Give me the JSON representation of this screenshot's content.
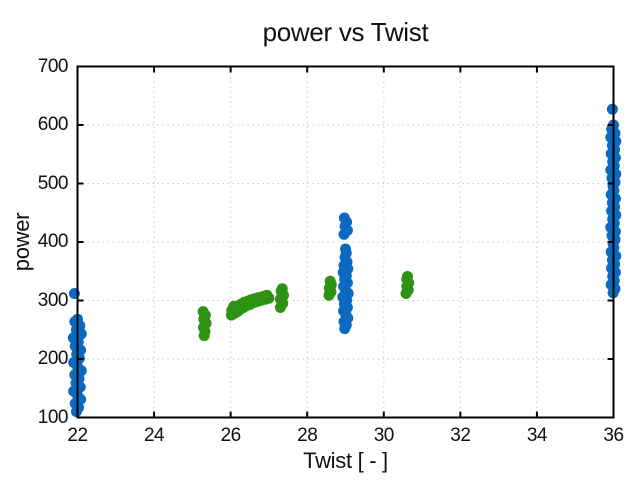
{
  "chart_data": {
    "type": "scatter",
    "title": "power vs Twist",
    "xlabel": "Twist [ - ]",
    "ylabel": "power",
    "xlim": [
      22,
      36
    ],
    "ylim": [
      100,
      700
    ],
    "x_ticks": [
      22,
      24,
      26,
      28,
      30,
      32,
      34,
      36
    ],
    "y_ticks": [
      100,
      200,
      300,
      400,
      500,
      600,
      700
    ],
    "grid": "dotted",
    "legend": "none",
    "marker_diameter_px": 11,
    "style": {
      "background": "#ffffff",
      "axis_color": "#000000",
      "grid_color": "#c8c8c8",
      "text_color": "#111111",
      "blue": "#0d69c0",
      "green": "#2e9314"
    },
    "series": [
      {
        "name": "series-blue",
        "color": "#0d69c0",
        "points": [
          [
            21.92,
            312
          ],
          [
            22.0,
            268
          ],
          [
            21.93,
            264
          ],
          [
            22.06,
            257
          ],
          [
            21.97,
            250
          ],
          [
            22.1,
            243
          ],
          [
            21.89,
            236
          ],
          [
            22.02,
            229
          ],
          [
            21.94,
            222
          ],
          [
            22.08,
            215
          ],
          [
            21.98,
            208
          ],
          [
            22.05,
            201
          ],
          [
            21.9,
            194
          ],
          [
            22.0,
            187
          ],
          [
            22.1,
            180
          ],
          [
            21.93,
            173
          ],
          [
            22.04,
            166
          ],
          [
            21.96,
            159
          ],
          [
            22.07,
            152
          ],
          [
            21.9,
            145
          ],
          [
            22.0,
            138
          ],
          [
            22.08,
            131
          ],
          [
            21.94,
            124
          ],
          [
            22.03,
            117
          ],
          [
            21.97,
            110
          ],
          [
            28.97,
            441
          ],
          [
            29.03,
            434
          ],
          [
            28.99,
            427
          ],
          [
            29.05,
            420
          ],
          [
            28.96,
            413
          ],
          [
            29.0,
            388
          ],
          [
            29.02,
            381
          ],
          [
            28.99,
            374
          ],
          [
            29.04,
            366
          ],
          [
            28.96,
            360
          ],
          [
            29.06,
            354
          ],
          [
            28.94,
            348
          ],
          [
            29.02,
            342
          ],
          [
            28.98,
            336
          ],
          [
            29.05,
            330
          ],
          [
            28.95,
            324
          ],
          [
            29.0,
            318
          ],
          [
            29.07,
            312
          ],
          [
            28.93,
            306
          ],
          [
            29.03,
            300
          ],
          [
            28.97,
            294
          ],
          [
            29.05,
            288
          ],
          [
            28.95,
            282
          ],
          [
            29.01,
            276
          ],
          [
            29.06,
            270
          ],
          [
            28.96,
            264
          ],
          [
            29.02,
            258
          ],
          [
            28.98,
            252
          ],
          [
            35.97,
            627
          ],
          [
            36.0,
            600
          ],
          [
            35.95,
            593
          ],
          [
            36.04,
            586
          ],
          [
            35.93,
            579
          ],
          [
            36.06,
            572
          ],
          [
            35.97,
            565
          ],
          [
            36.03,
            558
          ],
          [
            35.94,
            551
          ],
          [
            36.05,
            544
          ],
          [
            35.98,
            537
          ],
          [
            36.02,
            530
          ],
          [
            35.93,
            523
          ],
          [
            36.06,
            516
          ],
          [
            35.96,
            509
          ],
          [
            36.04,
            502
          ],
          [
            35.99,
            495
          ],
          [
            36.01,
            488
          ],
          [
            35.94,
            481
          ],
          [
            36.05,
            474
          ],
          [
            35.97,
            467
          ],
          [
            36.03,
            460
          ],
          [
            35.95,
            453
          ],
          [
            36.06,
            446
          ],
          [
            35.98,
            439
          ],
          [
            36.02,
            432
          ],
          [
            35.93,
            425
          ],
          [
            36.05,
            418
          ],
          [
            35.96,
            411
          ],
          [
            36.04,
            404
          ],
          [
            35.99,
            397
          ],
          [
            36.01,
            390
          ],
          [
            35.94,
            383
          ],
          [
            36.06,
            376
          ],
          [
            35.97,
            369
          ],
          [
            36.03,
            362
          ],
          [
            35.95,
            355
          ],
          [
            36.05,
            348
          ],
          [
            35.98,
            341
          ],
          [
            36.02,
            334
          ],
          [
            35.94,
            327
          ],
          [
            36.04,
            320
          ],
          [
            35.99,
            313
          ]
        ]
      },
      {
        "name": "series-green",
        "color": "#2e9314",
        "points": [
          [
            25.28,
            281
          ],
          [
            25.34,
            275
          ],
          [
            25.3,
            268
          ],
          [
            25.36,
            261
          ],
          [
            25.29,
            254
          ],
          [
            25.33,
            247
          ],
          [
            25.31,
            240
          ],
          [
            26.02,
            275
          ],
          [
            26.03,
            283
          ],
          [
            26.08,
            290
          ],
          [
            26.1,
            278
          ],
          [
            26.14,
            287
          ],
          [
            26.18,
            281
          ],
          [
            26.2,
            291
          ],
          [
            26.25,
            285
          ],
          [
            26.28,
            294
          ],
          [
            26.33,
            288
          ],
          [
            26.36,
            297
          ],
          [
            26.4,
            291
          ],
          [
            26.45,
            299
          ],
          [
            26.5,
            293
          ],
          [
            26.53,
            301
          ],
          [
            26.58,
            296
          ],
          [
            26.62,
            303
          ],
          [
            26.68,
            298
          ],
          [
            26.72,
            305
          ],
          [
            26.78,
            300
          ],
          [
            26.85,
            307
          ],
          [
            26.9,
            302
          ],
          [
            26.95,
            309
          ],
          [
            27.0,
            304
          ],
          [
            27.3,
            288
          ],
          [
            27.36,
            295
          ],
          [
            27.3,
            302
          ],
          [
            27.38,
            309
          ],
          [
            27.32,
            316
          ],
          [
            27.35,
            320
          ],
          [
            28.57,
            309
          ],
          [
            28.62,
            315
          ],
          [
            28.58,
            321
          ],
          [
            28.63,
            327
          ],
          [
            28.6,
            333
          ],
          [
            30.58,
            312
          ],
          [
            30.64,
            318
          ],
          [
            30.6,
            324
          ],
          [
            30.65,
            330
          ],
          [
            30.6,
            336
          ],
          [
            30.62,
            341
          ]
        ]
      }
    ]
  }
}
